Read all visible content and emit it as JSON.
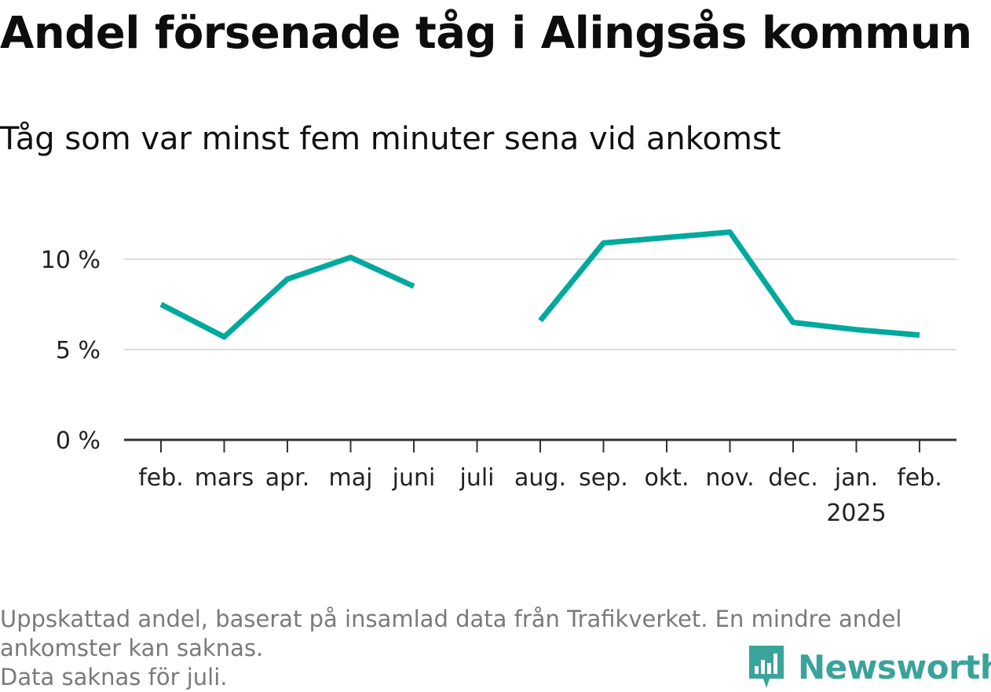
{
  "title": "Andel försenade tåg i Alingsås kommun",
  "subtitle": "Tåg som var minst fem minuter sena vid ankomst",
  "footnote": [
    "Uppskattad andel, baserat på insamlad data från Trafikverket. En mindre andel",
    "ankomster kan saknas.",
    "Data saknas för juli."
  ],
  "brand": "Newsworthy",
  "colors": {
    "line": "#00a99d",
    "grid": "#dddddd",
    "axis": "#333333",
    "brand": "#3aa39b"
  },
  "chart_data": {
    "type": "line",
    "categories": [
      "feb.",
      "mars",
      "apr.",
      "maj",
      "juni",
      "juli",
      "aug.",
      "sep.",
      "okt.",
      "nov.",
      "dec.",
      "jan.",
      "feb."
    ],
    "year_labels": [
      "",
      "",
      "",
      "",
      "",
      "",
      "",
      "",
      "",
      "",
      "",
      "2025",
      ""
    ],
    "series": [
      {
        "values": [
          7.5,
          5.7,
          8.9,
          10.1,
          8.5,
          null,
          6.6,
          10.9,
          11.2,
          11.5,
          6.5,
          6.1,
          5.8
        ]
      }
    ],
    "yticks": [
      0,
      5,
      10
    ],
    "ytick_labels": [
      "0 %",
      "5 %",
      "10 %"
    ],
    "ylim": [
      0,
      12
    ],
    "grid": true,
    "xlabel": "",
    "ylabel": ""
  }
}
